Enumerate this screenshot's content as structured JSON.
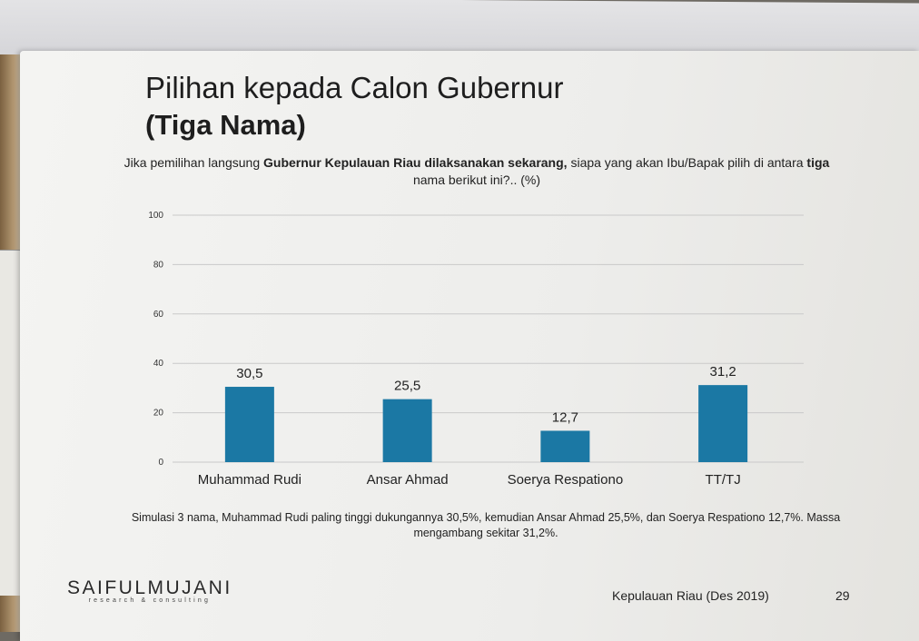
{
  "slide": {
    "title": "Pilihan kepada Calon Gubernur",
    "subtitle": "(Tiga Nama)",
    "question_parts": [
      {
        "text": "Jika pemilihan langsung ",
        "bold": false
      },
      {
        "text": "Gubernur Kepulauan Riau dilaksanakan sekarang,",
        "bold": true
      },
      {
        "text": " siapa yang akan Ibu/Bapak pilih di antara ",
        "bold": false
      },
      {
        "text": "tiga",
        "bold": true
      },
      {
        "text": " nama berikut ini?.. (%)",
        "bold": false
      }
    ],
    "note": "Simulasi 3 nama, Muhammad Rudi paling tinggi dukungannya 30,5%, kemudian Ansar Ahmad 25,5%, dan Soerya Respationo 12,7%. Massa mengambang sekitar 31,2%.",
    "logo_main": "SAIFULMUJANI",
    "logo_sub": "research & consulting",
    "footer": "Kepulauan Riau (Des 2019)",
    "page_number": "29"
  },
  "chart_data": {
    "type": "bar",
    "title": "",
    "xlabel": "",
    "ylabel": "",
    "categories": [
      "Muhammad Rudi",
      "Ansar Ahmad",
      "Soerya Respationo",
      "TT/TJ"
    ],
    "values": [
      30.5,
      25.5,
      12.7,
      31.2
    ],
    "value_labels": [
      "30,5",
      "25,5",
      "12,7",
      "31,2"
    ],
    "ylim": [
      0,
      100
    ],
    "yticks": [
      0,
      20,
      40,
      60,
      80,
      100
    ],
    "grid": true,
    "legend": "none",
    "bar_color": "#1b78a4",
    "grid_color": "#c9c9c9"
  }
}
